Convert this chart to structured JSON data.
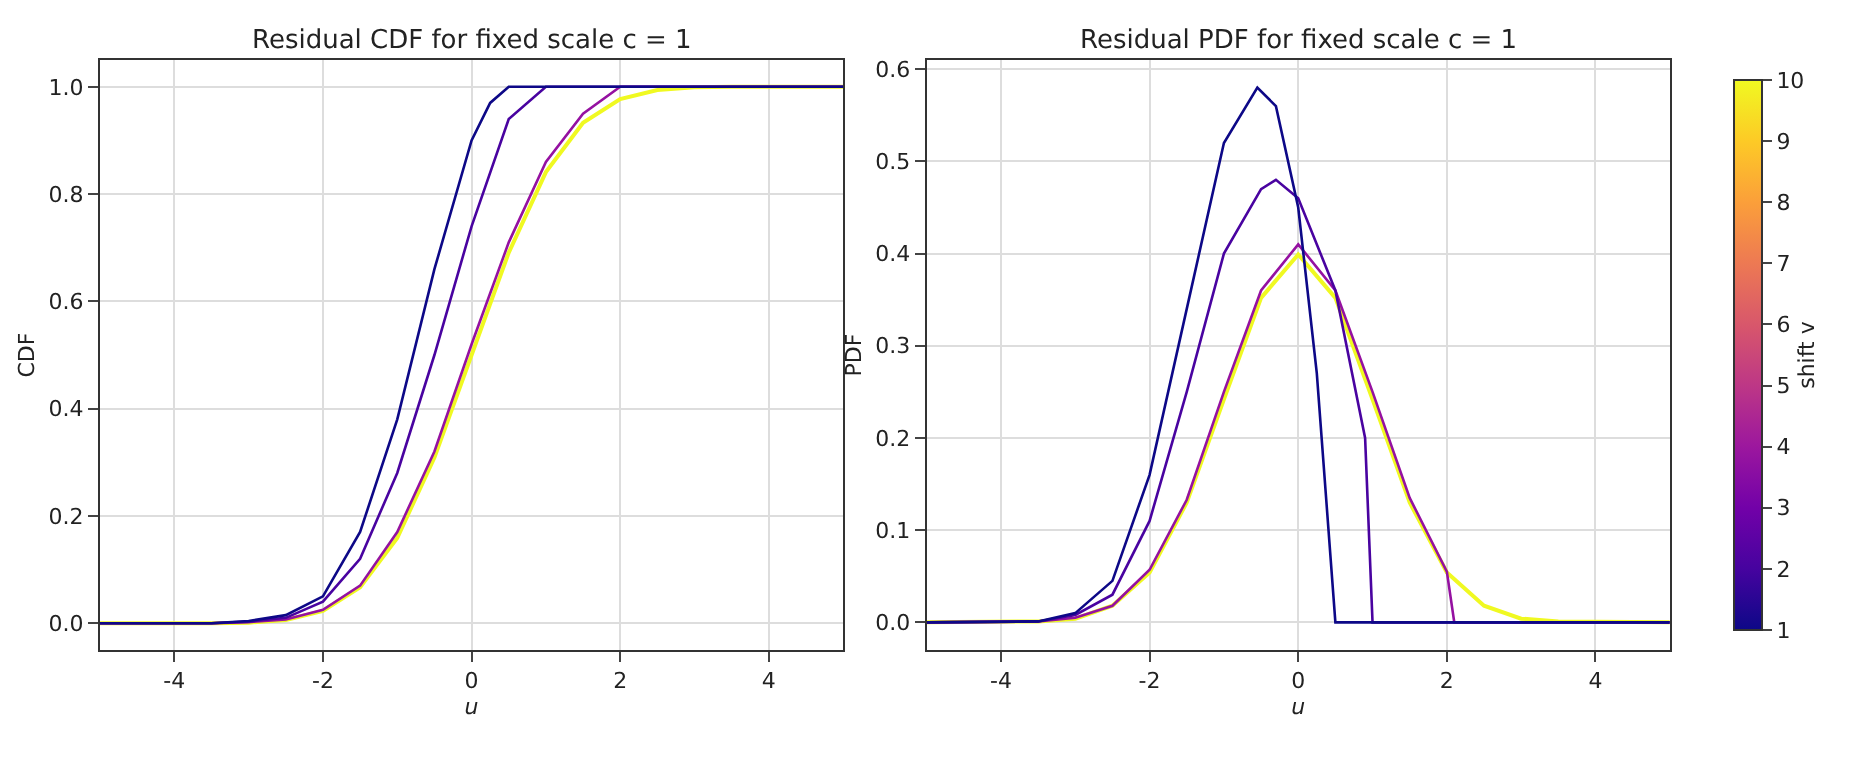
{
  "chart_data": [
    {
      "type": "line",
      "title": "Residual CDF for fixed scale c = 1",
      "xlabel": "u",
      "ylabel": "CDF",
      "xlim": [
        -5,
        5
      ],
      "xticks": [
        -4,
        -2,
        0,
        2,
        4
      ],
      "ylim": [
        -0.05,
        1.05
      ],
      "yticks": [
        {
          "value": 0,
          "label": "0.0"
        },
        {
          "value": 0.2,
          "label": "0.2"
        },
        {
          "value": 0.4,
          "label": "0.4"
        },
        {
          "value": 0.6,
          "label": "0.6"
        },
        {
          "value": 0.8,
          "label": "0.8"
        },
        {
          "value": 1,
          "label": "1.0"
        }
      ],
      "grid": true,
      "line_style": "solid",
      "series": [
        {
          "color": "#f0f921",
          "x": [
            -5,
            -3.5,
            -3,
            -2.5,
            -2,
            -1.5,
            -1,
            -0.5,
            0,
            0.5,
            1,
            1.5,
            2,
            2.5,
            3,
            3.5,
            5
          ],
          "values": [
            0,
            0,
            0.001,
            0.006,
            0.023,
            0.067,
            0.159,
            0.309,
            0.5,
            0.691,
            0.841,
            0.933,
            0.977,
            0.994,
            0.999,
            1,
            1
          ]
        },
        {
          "color": "#9511a1",
          "x": [
            -5,
            -3.5,
            -3,
            -2.5,
            -2,
            -1.5,
            -1,
            -0.5,
            0,
            0.5,
            1,
            1.5,
            2,
            5
          ],
          "values": [
            0,
            0,
            0.002,
            0.007,
            0.025,
            0.07,
            0.17,
            0.32,
            0.52,
            0.71,
            0.86,
            0.95,
            1,
            1
          ]
        },
        {
          "color": "#4903a0",
          "x": [
            -5,
            -3.5,
            -3,
            -2.5,
            -2,
            -1.5,
            -1,
            -0.5,
            0,
            0.5,
            1,
            5
          ],
          "values": [
            0,
            0,
            0.003,
            0.01,
            0.04,
            0.12,
            0.28,
            0.5,
            0.74,
            0.94,
            1,
            1
          ]
        },
        {
          "color": "#0d0887",
          "x": [
            -5,
            -3.5,
            -3,
            -2.5,
            -2,
            -1.5,
            -1,
            -0.5,
            0,
            0.25,
            0.5,
            5
          ],
          "values": [
            0,
            0,
            0.004,
            0.015,
            0.05,
            0.17,
            0.38,
            0.66,
            0.9,
            0.97,
            1,
            1
          ]
        }
      ]
    },
    {
      "type": "line",
      "title": "Residual PDF for fixed scale c = 1",
      "xlabel": "u",
      "ylabel": "PDF",
      "xlim": [
        -5,
        5
      ],
      "xticks": [
        -4,
        -2,
        0,
        2,
        4
      ],
      "ylim": [
        -0.03,
        0.61
      ],
      "yticks": [
        {
          "value": 0,
          "label": "0.0"
        },
        {
          "value": 0.1,
          "label": "0.1"
        },
        {
          "value": 0.2,
          "label": "0.2"
        },
        {
          "value": 0.3,
          "label": "0.3"
        },
        {
          "value": 0.4,
          "label": "0.4"
        },
        {
          "value": 0.5,
          "label": "0.5"
        },
        {
          "value": 0.6,
          "label": "0.6"
        }
      ],
      "grid": true,
      "line_style": "solid",
      "clabel": "shift v",
      "clim": [
        1,
        10
      ],
      "cticks": [
        1,
        2,
        3,
        4,
        5,
        6,
        7,
        8,
        9,
        10
      ],
      "series": [
        {
          "color": "#f0f921",
          "x": [
            -5,
            -3.5,
            -3,
            -2.5,
            -2,
            -1.5,
            -1,
            -0.5,
            0,
            0.5,
            1,
            1.5,
            2,
            2.5,
            3,
            3.5,
            5
          ],
          "values": [
            0,
            0.001,
            0.004,
            0.018,
            0.054,
            0.13,
            0.242,
            0.352,
            0.399,
            0.352,
            0.242,
            0.13,
            0.054,
            0.018,
            0.004,
            0.001,
            0
          ]
        },
        {
          "color": "#9511a1",
          "x": [
            -5,
            -3.5,
            -3,
            -2.5,
            -2,
            -1.5,
            -1,
            -0.5,
            0,
            0.5,
            1,
            1.5,
            2,
            2.1,
            5
          ],
          "values": [
            0,
            0.001,
            0.005,
            0.018,
            0.057,
            0.133,
            0.25,
            0.36,
            0.41,
            0.36,
            0.25,
            0.135,
            0.055,
            0,
            0
          ]
        },
        {
          "color": "#4903a0",
          "x": [
            -5,
            -3.5,
            -3,
            -2.5,
            -2,
            -1.5,
            -1,
            -0.5,
            -0.3,
            0,
            0.5,
            0.9,
            1,
            5
          ],
          "values": [
            0,
            0.001,
            0.008,
            0.03,
            0.11,
            0.25,
            0.4,
            0.47,
            0.48,
            0.46,
            0.36,
            0.2,
            0,
            0
          ]
        },
        {
          "color": "#0d0887",
          "x": [
            -5,
            -3.5,
            -3,
            -2.5,
            -2,
            -1.5,
            -1,
            -0.55,
            -0.3,
            0,
            0.25,
            0.5,
            5
          ],
          "values": [
            0,
            0.001,
            0.01,
            0.045,
            0.16,
            0.34,
            0.52,
            0.58,
            0.56,
            0.45,
            0.27,
            0,
            0
          ]
        }
      ]
    }
  ]
}
